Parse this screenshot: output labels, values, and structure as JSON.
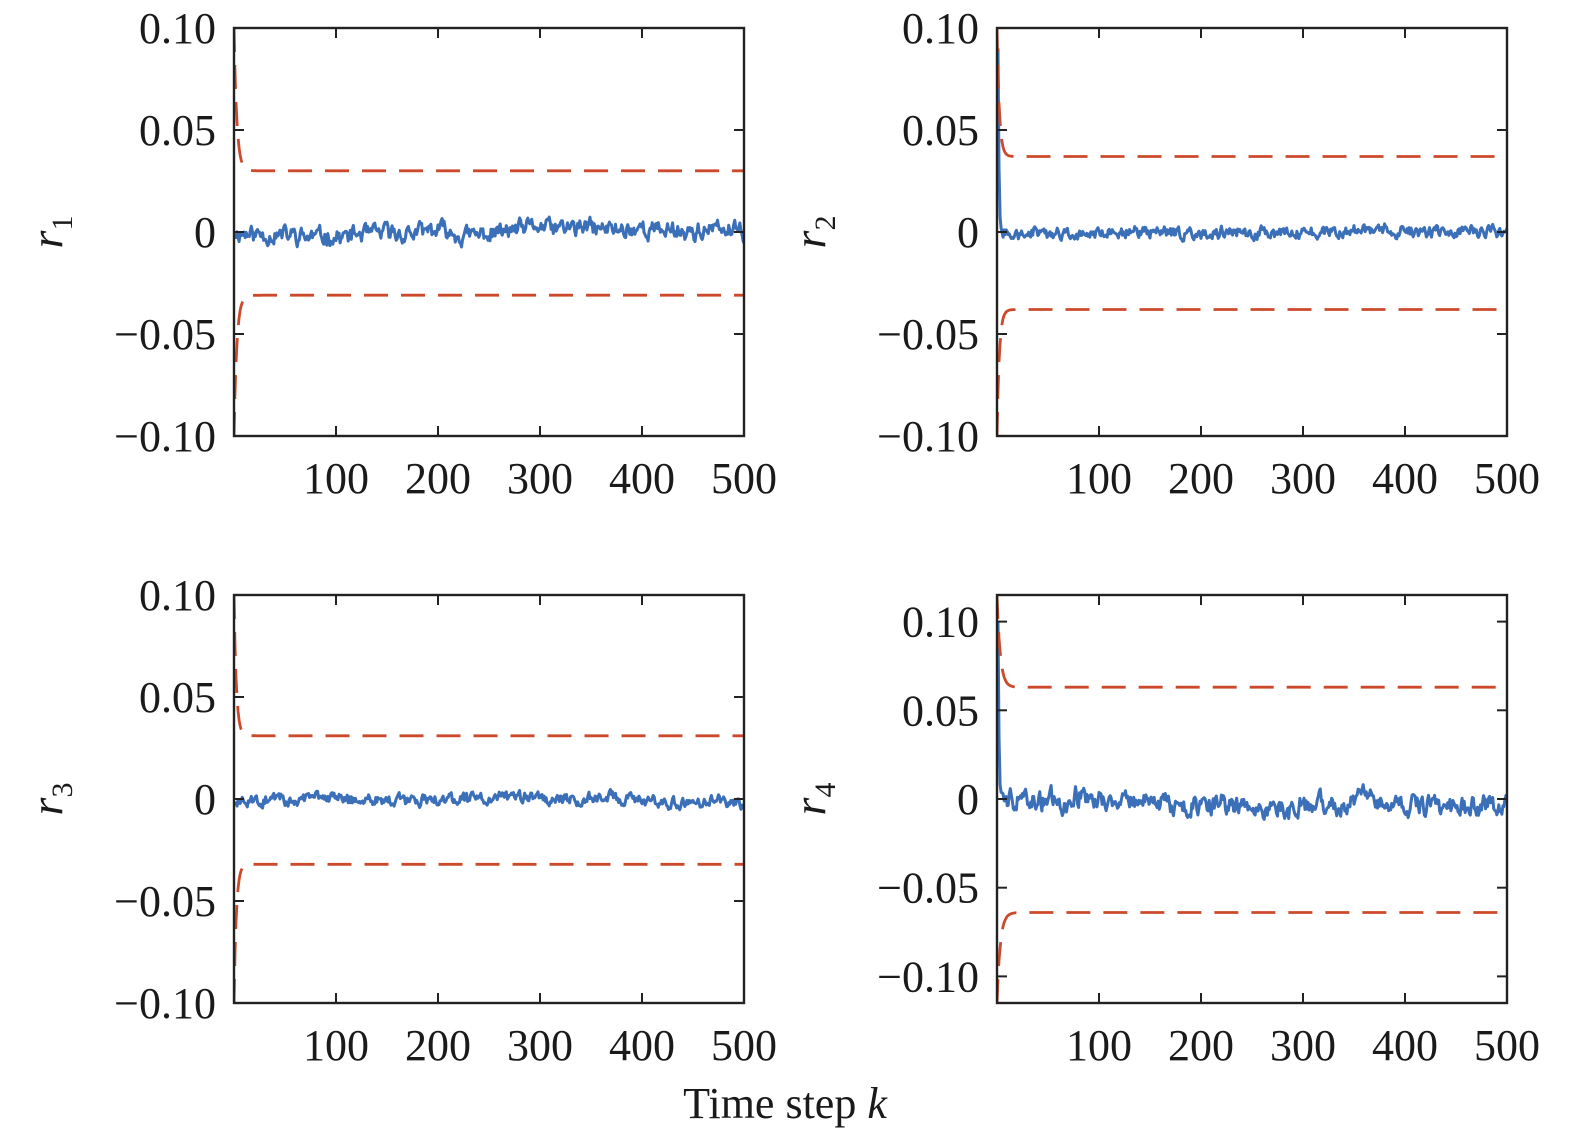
{
  "figure": {
    "xlabel": "Time step",
    "xlabel_var": "k"
  },
  "colors": {
    "residual": "#3b6fb8",
    "threshold": "#cc4a2b",
    "axes": "#222222"
  },
  "chart_data": [
    {
      "type": "line",
      "ylabel": "r",
      "ylabel_sub": "1",
      "xlim": [
        0,
        500
      ],
      "ylim": [
        -0.1,
        0.1
      ],
      "xticks": [
        100,
        200,
        300,
        400,
        500
      ],
      "xtick_labels": [
        "100",
        "200",
        "300",
        "400",
        "500"
      ],
      "yticks": [
        0.1,
        0.05,
        0,
        -0.05,
        -0.1
      ],
      "ytick_labels": [
        "0.10",
        "0.05",
        "0",
        "−0.05",
        "−0.10"
      ],
      "grid": false,
      "series": [
        {
          "style": "solid",
          "color": "#3b6fb8",
          "x": [
            0,
            500
          ],
          "baseline": 0.0,
          "noise_amplitude": 0.0065,
          "seed": 11
        },
        {
          "style": "dashed",
          "color": "#cc4a2b",
          "x": [
            0,
            500
          ],
          "start": 0.1,
          "settle": 0.03,
          "transient_steps": 6
        },
        {
          "style": "dashed",
          "color": "#cc4a2b",
          "x": [
            0,
            500
          ],
          "start": -0.1,
          "settle": -0.031,
          "transient_steps": 6
        }
      ]
    },
    {
      "type": "line",
      "ylabel": "r",
      "ylabel_sub": "2",
      "xlim": [
        0,
        500
      ],
      "ylim": [
        -0.1,
        0.1
      ],
      "xticks": [
        100,
        200,
        300,
        400,
        500
      ],
      "xtick_labels": [
        "100",
        "200",
        "300",
        "400",
        "500"
      ],
      "yticks": [
        0.1,
        0.05,
        0,
        -0.05,
        -0.1
      ],
      "ytick_labels": [
        "0.10",
        "0.05",
        "0",
        "−0.05",
        "−0.10"
      ],
      "grid": false,
      "series": [
        {
          "style": "solid",
          "color": "#3b6fb8",
          "x": [
            0,
            500
          ],
          "baseline": 0.0,
          "noise_amplitude": 0.0045,
          "seed": 27,
          "initial_spike": 0.09
        },
        {
          "style": "dashed",
          "color": "#cc4a2b",
          "x": [
            0,
            500
          ],
          "start": 0.1,
          "settle": 0.037,
          "transient_steps": 5
        },
        {
          "style": "dashed",
          "color": "#cc4a2b",
          "x": [
            0,
            500
          ],
          "start": -0.1,
          "settle": -0.038,
          "transient_steps": 5
        }
      ]
    },
    {
      "type": "line",
      "ylabel": "r",
      "ylabel_sub": "3",
      "xlim": [
        0,
        500
      ],
      "ylim": [
        -0.1,
        0.1
      ],
      "xticks": [
        100,
        200,
        300,
        400,
        500
      ],
      "xtick_labels": [
        "100",
        "200",
        "300",
        "400",
        "500"
      ],
      "yticks": [
        0.1,
        0.05,
        0,
        -0.05,
        -0.1
      ],
      "ytick_labels": [
        "0.10",
        "0.05",
        "0",
        "−0.05",
        "−0.10"
      ],
      "grid": false,
      "series": [
        {
          "style": "solid",
          "color": "#3b6fb8",
          "x": [
            0,
            500
          ],
          "baseline": 0.0,
          "noise_amplitude": 0.0045,
          "seed": 43
        },
        {
          "style": "dashed",
          "color": "#cc4a2b",
          "x": [
            0,
            500
          ],
          "start": 0.1,
          "settle": 0.031,
          "transient_steps": 5
        },
        {
          "style": "dashed",
          "color": "#cc4a2b",
          "x": [
            0,
            500
          ],
          "start": -0.1,
          "settle": -0.032,
          "transient_steps": 5
        }
      ]
    },
    {
      "type": "line",
      "ylabel": "r",
      "ylabel_sub": "4",
      "xlim": [
        0,
        500
      ],
      "ylim": [
        -0.115,
        0.115
      ],
      "xticks": [
        100,
        200,
        300,
        400,
        500
      ],
      "xtick_labels": [
        "100",
        "200",
        "300",
        "400",
        "500"
      ],
      "yticks": [
        0.1,
        0.05,
        0,
        -0.05,
        -0.1
      ],
      "ytick_labels": [
        "0.10",
        "0.05",
        "0",
        "−0.05",
        "−0.10"
      ],
      "grid": false,
      "series": [
        {
          "style": "solid",
          "color": "#3b6fb8",
          "x": [
            0,
            500
          ],
          "baseline": 0.0,
          "noise_amplitude": 0.009,
          "seed": 59,
          "initial_spike": 0.1
        },
        {
          "style": "dashed",
          "color": "#cc4a2b",
          "x": [
            0,
            500
          ],
          "start": 0.115,
          "settle": 0.063,
          "transient_steps": 7
        },
        {
          "style": "dashed",
          "color": "#cc4a2b",
          "x": [
            0,
            500
          ],
          "start": -0.115,
          "settle": -0.064,
          "transient_steps": 7
        }
      ]
    }
  ]
}
